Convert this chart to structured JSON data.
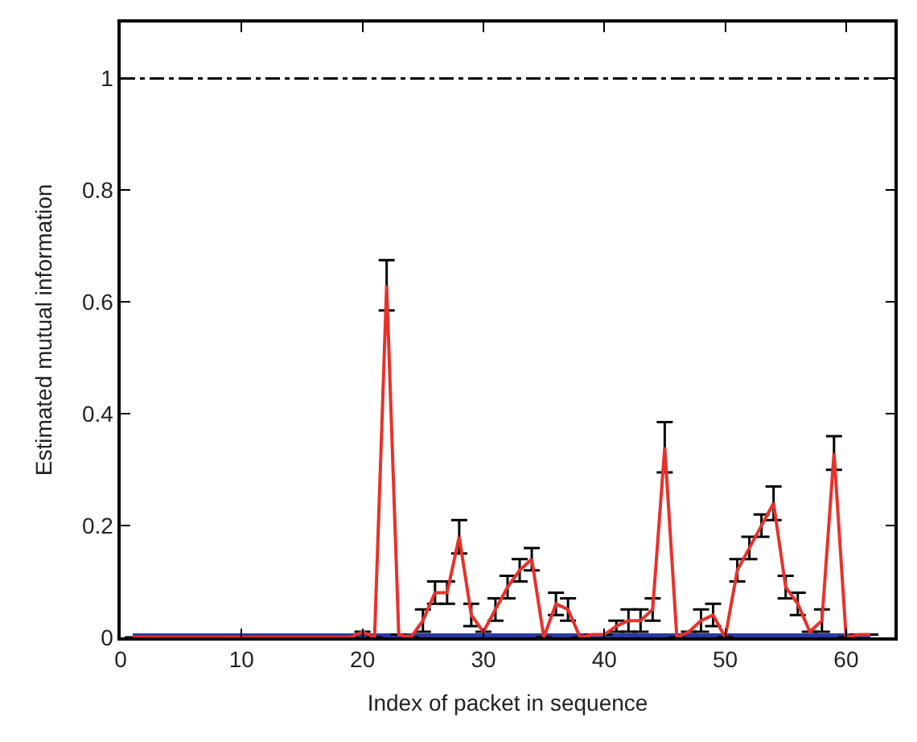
{
  "chart_data": {
    "type": "line",
    "xlabel": "Index of packet in sequence",
    "ylabel": "Estimated mutual information",
    "x": [
      1,
      2,
      3,
      4,
      5,
      6,
      7,
      8,
      9,
      10,
      11,
      12,
      13,
      14,
      15,
      16,
      17,
      18,
      19,
      20,
      21,
      22,
      23,
      24,
      25,
      26,
      27,
      28,
      29,
      30,
      31,
      32,
      33,
      34,
      35,
      36,
      37,
      38,
      39,
      40,
      41,
      42,
      43,
      44,
      45,
      46,
      47,
      48,
      49,
      50,
      51,
      52,
      53,
      54,
      55,
      56,
      57,
      58,
      59,
      60,
      61,
      62
    ],
    "series": [
      {
        "color": "#e8312a",
        "marker": "none",
        "values": [
          0,
          0,
          0,
          0,
          0,
          0,
          0,
          0,
          0,
          0,
          0,
          0,
          0,
          0,
          0,
          0,
          0,
          0,
          0,
          0.01,
          0,
          0.63,
          0.005,
          0,
          0.03,
          0.08,
          0.08,
          0.18,
          0.04,
          0.01,
          0.05,
          0.09,
          0.12,
          0.14,
          0,
          0.06,
          0.05,
          0,
          0.005,
          0.005,
          0.02,
          0.03,
          0.03,
          0.05,
          0.34,
          0,
          0.01,
          0.03,
          0.04,
          0,
          0.12,
          0.16,
          0.2,
          0.24,
          0.09,
          0.06,
          0.01,
          0.03,
          0.33,
          0,
          0.005,
          0.005
        ],
        "errors": [
          null,
          null,
          null,
          null,
          null,
          null,
          null,
          null,
          null,
          null,
          null,
          null,
          null,
          null,
          null,
          null,
          null,
          null,
          null,
          null,
          null,
          0.045,
          null,
          null,
          0.02,
          0.02,
          0.02,
          0.03,
          0.02,
          null,
          0.02,
          0.02,
          0.02,
          0.02,
          null,
          0.02,
          0.02,
          null,
          null,
          null,
          0.01,
          0.02,
          0.02,
          0.02,
          0.045,
          null,
          null,
          0.02,
          0.02,
          null,
          0.02,
          0.02,
          0.02,
          0.03,
          0.02,
          0.02,
          null,
          0.02,
          0.03,
          null,
          null,
          null
        ]
      },
      {
        "color": "#2b3a9e",
        "marker": "none",
        "values": [
          0,
          0,
          0,
          0,
          0,
          0,
          0,
          0,
          0,
          0,
          0,
          0,
          0,
          0,
          0,
          0,
          0,
          0,
          0,
          0,
          0,
          0,
          0,
          0,
          0,
          0,
          0,
          0,
          0,
          0,
          0,
          0,
          0,
          0,
          0,
          0,
          0,
          0,
          0,
          0,
          0,
          0,
          0,
          0,
          0,
          0,
          0,
          0,
          0,
          0,
          0,
          0,
          0,
          0,
          0,
          0,
          0,
          0,
          0,
          0,
          0,
          0
        ]
      }
    ],
    "ref_lines": [
      {
        "axis": "y",
        "value": 1,
        "color": "#000000",
        "line_style": "dashdot"
      }
    ],
    "xlim": [
      0,
      64
    ],
    "xticks": [
      0,
      10,
      20,
      30,
      40,
      50,
      60
    ],
    "ylim": [
      0,
      1.1
    ],
    "yticks": [
      0,
      0.2,
      0.4,
      0.6,
      0.8,
      1
    ]
  }
}
